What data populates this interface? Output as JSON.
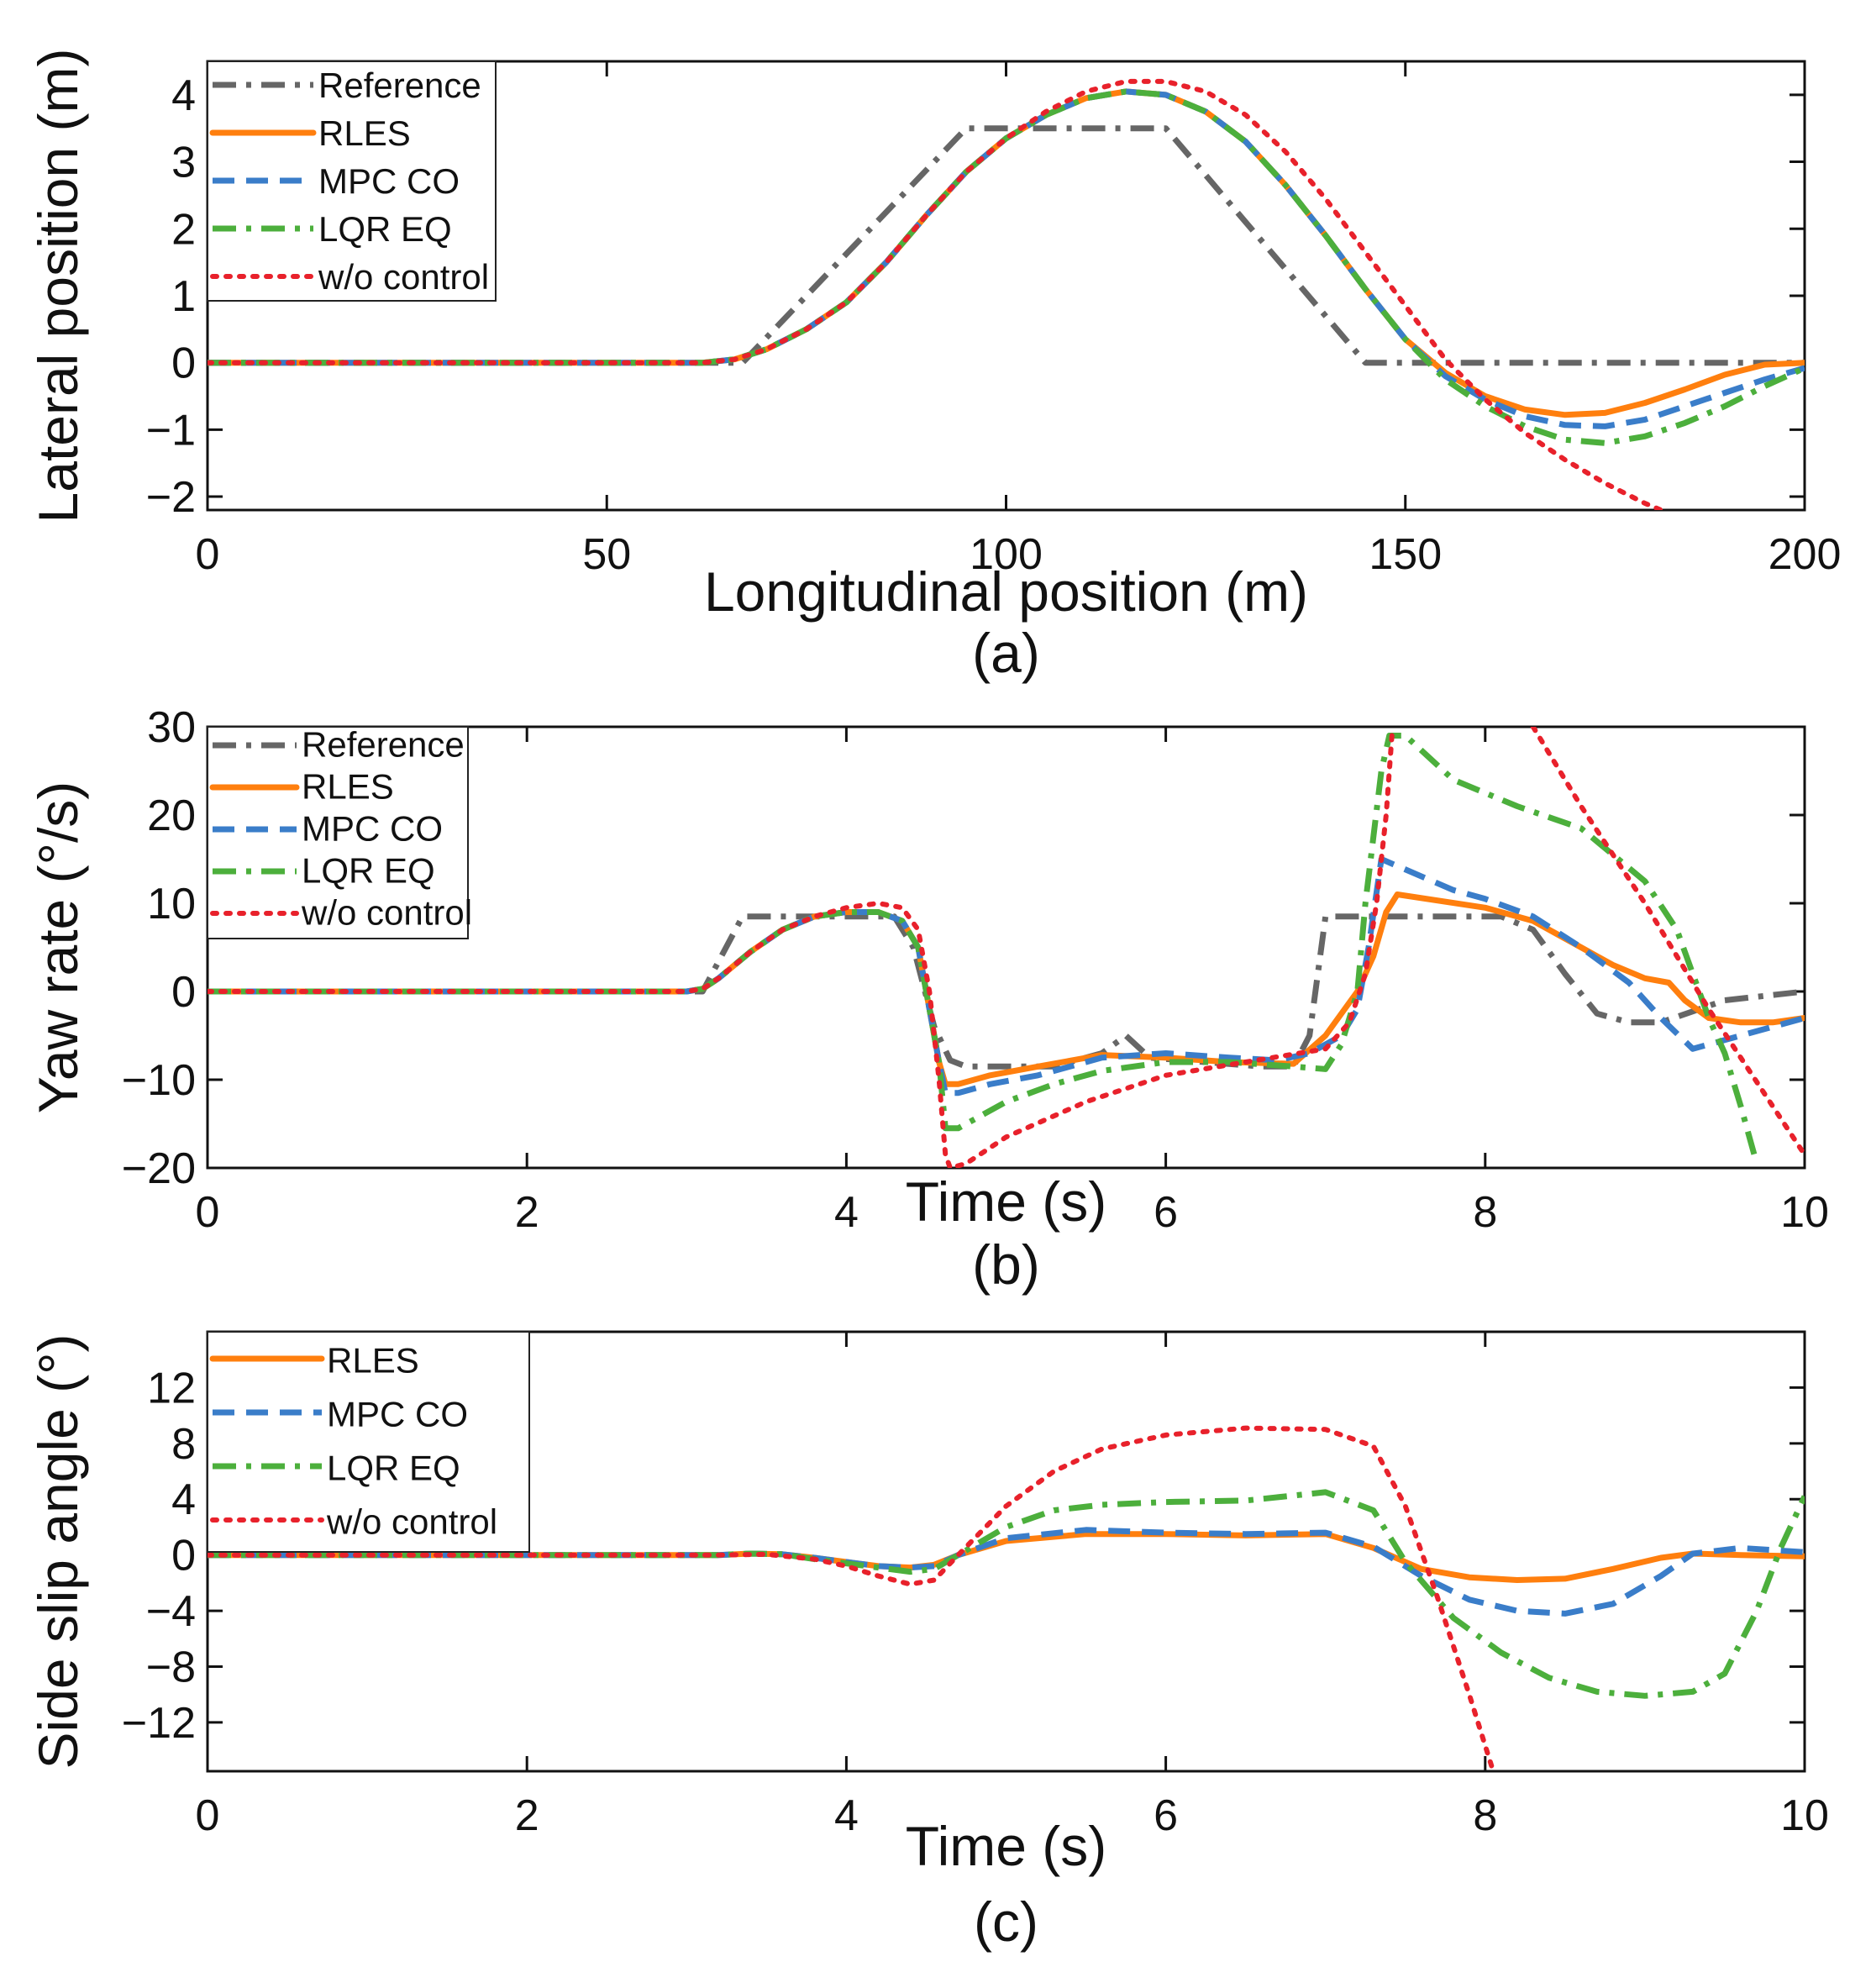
{
  "figure_title": "",
  "chart_data": [
    {
      "type": "line",
      "title": "",
      "caption": "(a)",
      "xlabel": "Longitudinal position (m)",
      "ylabel": "Lateral position (m)",
      "xlim": [
        0,
        200
      ],
      "ylim": [
        -2.2,
        4.5
      ],
      "xticks": [
        0,
        50,
        100,
        150,
        200
      ],
      "xtick_labels": [
        "0",
        "50",
        "100",
        "150",
        "200"
      ],
      "yticks": [
        -2,
        -1,
        0,
        1,
        2,
        3,
        4
      ],
      "ytick_labels": [
        "−2",
        "−1",
        "0",
        "1",
        "2",
        "3",
        "4"
      ],
      "grid": false,
      "legend_position": "top-left",
      "series": [
        {
          "name": "Reference",
          "color": "#666666",
          "style": "dashdot",
          "x": [
            0,
            67,
            95,
            120,
            145,
            200
          ],
          "y": [
            0,
            0,
            3.5,
            3.5,
            0,
            0
          ]
        },
        {
          "name": "RLES",
          "color": "#ff7f0e",
          "style": "solid",
          "x": [
            0,
            62,
            66,
            70,
            75,
            80,
            85,
            90,
            95,
            100,
            105,
            110,
            115,
            120,
            125,
            130,
            135,
            140,
            145,
            150,
            155,
            160,
            165,
            170,
            175,
            180,
            185,
            190,
            195,
            200
          ],
          "y": [
            0,
            0,
            0.05,
            0.2,
            0.5,
            0.9,
            1.5,
            2.2,
            2.85,
            3.35,
            3.7,
            3.95,
            4.05,
            4.0,
            3.75,
            3.3,
            2.65,
            1.9,
            1.1,
            0.35,
            -0.15,
            -0.5,
            -0.7,
            -0.78,
            -0.75,
            -0.6,
            -0.4,
            -0.18,
            -0.03,
            0
          ]
        },
        {
          "name": "MPC CO",
          "color": "#3a7dc9",
          "style": "dashed",
          "x": [
            0,
            62,
            66,
            70,
            75,
            80,
            85,
            90,
            95,
            100,
            105,
            110,
            115,
            120,
            125,
            130,
            135,
            140,
            145,
            150,
            155,
            160,
            165,
            170,
            175,
            180,
            185,
            190,
            195,
            200
          ],
          "y": [
            0,
            0,
            0.05,
            0.2,
            0.5,
            0.9,
            1.5,
            2.2,
            2.85,
            3.35,
            3.7,
            3.95,
            4.05,
            4.0,
            3.75,
            3.3,
            2.65,
            1.9,
            1.1,
            0.35,
            -0.2,
            -0.55,
            -0.8,
            -0.93,
            -0.95,
            -0.85,
            -0.65,
            -0.45,
            -0.25,
            -0.08
          ]
        },
        {
          "name": "LQR EQ",
          "color": "#4caf3c",
          "style": "dashdot",
          "x": [
            0,
            62,
            66,
            70,
            75,
            80,
            85,
            90,
            95,
            100,
            105,
            110,
            115,
            120,
            125,
            130,
            135,
            140,
            145,
            150,
            155,
            160,
            165,
            170,
            175,
            180,
            185,
            190,
            195,
            200
          ],
          "y": [
            0,
            0,
            0.05,
            0.2,
            0.5,
            0.9,
            1.5,
            2.2,
            2.85,
            3.35,
            3.7,
            3.95,
            4.05,
            4.0,
            3.75,
            3.3,
            2.65,
            1.9,
            1.1,
            0.35,
            -0.25,
            -0.65,
            -0.95,
            -1.15,
            -1.2,
            -1.1,
            -0.9,
            -0.65,
            -0.35,
            -0.08
          ]
        },
        {
          "name": "w/o control",
          "color": "#e8212b",
          "style": "dotted",
          "x": [
            0,
            62,
            66,
            70,
            75,
            80,
            85,
            90,
            95,
            100,
            105,
            110,
            115,
            120,
            125,
            130,
            135,
            140,
            145,
            150,
            155,
            160,
            165,
            170,
            175,
            180,
            182
          ],
          "y": [
            0,
            0,
            0.05,
            0.2,
            0.5,
            0.9,
            1.5,
            2.2,
            2.85,
            3.35,
            3.75,
            4.05,
            4.2,
            4.2,
            4.05,
            3.7,
            3.15,
            2.45,
            1.65,
            0.85,
            0.05,
            -0.55,
            -1.05,
            -1.45,
            -1.8,
            -2.1,
            -2.2
          ]
        }
      ]
    },
    {
      "type": "line",
      "title": "",
      "caption": "(b)",
      "xlabel": "Time (s)",
      "ylabel": "Yaw rate (°/s)",
      "xlim": [
        0,
        10
      ],
      "ylim": [
        -20,
        30
      ],
      "xticks": [
        0,
        2,
        4,
        6,
        8,
        10
      ],
      "xtick_labels": [
        "0",
        "2",
        "4",
        "6",
        "8",
        "10"
      ],
      "yticks": [
        -20,
        -10,
        0,
        10,
        20,
        30
      ],
      "ytick_labels": [
        "−20",
        "−10",
        "0",
        "10",
        "20",
        "30"
      ],
      "grid": false,
      "legend_position": "top-left",
      "series": [
        {
          "name": "Reference",
          "color": "#666666",
          "style": "dashdot",
          "x": [
            0,
            3.1,
            3.35,
            4.3,
            4.42,
            4.55,
            4.65,
            4.75,
            5.3,
            5.6,
            5.75,
            5.9,
            6.6,
            6.8,
            6.9,
            7.0,
            8.1,
            8.3,
            8.5,
            8.7,
            8.9,
            9.1,
            9.5,
            10
          ],
          "y": [
            0,
            0,
            8.5,
            8.5,
            5,
            -4,
            -7.8,
            -8.5,
            -8.5,
            -7,
            -5,
            -7.5,
            -8.5,
            -8.5,
            -5,
            8.5,
            8.5,
            7,
            2,
            -2.5,
            -3.5,
            -3.5,
            -1,
            0
          ]
        },
        {
          "name": "RLES",
          "color": "#ff7f0e",
          "style": "solid",
          "x": [
            0,
            3.0,
            3.1,
            3.2,
            3.4,
            3.6,
            3.8,
            4.0,
            4.2,
            4.35,
            4.45,
            4.52,
            4.58,
            4.62,
            4.7,
            4.9,
            5.2,
            5.6,
            6.0,
            6.4,
            6.8,
            7.0,
            7.2,
            7.3,
            7.38,
            7.45,
            8.0,
            8.3,
            8.6,
            8.8,
            9.0,
            9.15,
            9.25,
            9.4,
            9.6,
            9.8,
            10
          ],
          "y": [
            0,
            0,
            0.3,
            1.5,
            4.5,
            7,
            8.5,
            9,
            9,
            8,
            5,
            -2,
            -8,
            -10.5,
            -10.5,
            -9.5,
            -8.5,
            -7.2,
            -7.5,
            -8,
            -8.2,
            -5,
            0,
            4,
            9,
            11,
            9.5,
            8,
            5,
            3,
            1.5,
            1,
            -1,
            -3,
            -3.5,
            -3.5,
            -3
          ]
        },
        {
          "name": "MPC CO",
          "color": "#3a7dc9",
          "style": "dashed",
          "x": [
            0,
            3.0,
            3.1,
            3.2,
            3.4,
            3.6,
            3.8,
            4.0,
            4.2,
            4.35,
            4.45,
            4.52,
            4.58,
            4.62,
            4.7,
            4.9,
            5.2,
            5.6,
            6.0,
            6.4,
            6.7,
            6.9,
            7.1,
            7.2,
            7.27,
            7.35,
            7.8,
            8.0,
            8.3,
            8.6,
            8.9,
            9.1,
            9.3,
            9.5,
            9.8,
            10
          ],
          "y": [
            0,
            0,
            0.3,
            1.5,
            4.5,
            7,
            8.5,
            9,
            9,
            8,
            5,
            -2,
            -8,
            -11.5,
            -11.5,
            -10.5,
            -9.5,
            -7.5,
            -7,
            -7.5,
            -7.8,
            -7,
            -5,
            -2,
            5,
            15,
            11.5,
            10.5,
            8.5,
            5,
            1,
            -3,
            -6.5,
            -5.5,
            -4,
            -3
          ]
        },
        {
          "name": "LQR EQ",
          "color": "#4caf3c",
          "style": "dashdot",
          "x": [
            0,
            3.0,
            3.1,
            3.2,
            3.4,
            3.6,
            3.8,
            4.0,
            4.2,
            4.35,
            4.45,
            4.52,
            4.58,
            4.62,
            4.7,
            5.0,
            5.3,
            5.6,
            6.0,
            6.4,
            6.8,
            7.0,
            7.1,
            7.2,
            7.25,
            7.35,
            7.4,
            7.5,
            7.8,
            8.2,
            8.6,
            9.0,
            9.2,
            9.3,
            9.4,
            9.5,
            9.6,
            9.7
          ],
          "y": [
            0,
            0,
            0.3,
            1.5,
            4.5,
            7,
            8.5,
            9,
            9,
            8,
            5,
            -2,
            -8,
            -15.5,
            -15.5,
            -12.5,
            -10.5,
            -9,
            -8,
            -8,
            -8.5,
            -8.8,
            -6,
            0,
            10,
            25,
            29,
            29,
            24,
            21,
            18.5,
            12.5,
            7,
            2,
            -3,
            -7,
            -13,
            -19.5
          ]
        },
        {
          "name": "w/o control",
          "color": "#e8212b",
          "style": "dotted",
          "x": [
            0,
            3.0,
            3.1,
            3.2,
            3.4,
            3.6,
            3.8,
            4.0,
            4.2,
            4.35,
            4.45,
            4.52,
            4.58,
            4.62,
            4.65,
            4.75,
            5.0,
            5.5,
            6.0,
            6.5,
            7.0,
            7.15,
            7.25,
            7.32,
            7.38,
            7.42
          ],
          "y": [
            0,
            0,
            0.3,
            1.5,
            4.5,
            7,
            8.5,
            9.5,
            10,
            9.5,
            7,
            0,
            -10,
            -18.5,
            -20,
            -19.5,
            -16.5,
            -12.5,
            -9.5,
            -8,
            -6.5,
            -3.5,
            2,
            10,
            20,
            30
          ]
        },
        {
          "name": "w/o control",
          "color": "#e8212b",
          "style": "dotted",
          "x": [
            8.3,
            8.6,
            9.0,
            9.4,
            9.8,
            10
          ],
          "y": [
            30,
            21,
            10,
            -2,
            -13,
            -18.5
          ]
        }
      ]
    },
    {
      "type": "line",
      "title": "",
      "caption": "(c)",
      "xlabel": "Time (s)",
      "ylabel": "Side slip angle (°)",
      "xlim": [
        0,
        10
      ],
      "ylim": [
        -15.5,
        16
      ],
      "xticks": [
        0,
        2,
        4,
        6,
        8,
        10
      ],
      "xtick_labels": [
        "0",
        "2",
        "4",
        "6",
        "8",
        "10"
      ],
      "yticks": [
        -12,
        -8,
        -4,
        0,
        4,
        8,
        12
      ],
      "ytick_labels": [
        "−12",
        "−8",
        "−4",
        "0",
        "4",
        "8",
        "12"
      ],
      "grid": false,
      "legend_position": "top-left",
      "series": [
        {
          "name": "RLES",
          "color": "#ff7f0e",
          "style": "solid",
          "x": [
            0,
            3.2,
            3.4,
            3.6,
            3.8,
            4.0,
            4.2,
            4.4,
            4.55,
            4.7,
            5.0,
            5.5,
            6.0,
            6.5,
            7.0,
            7.3,
            7.6,
            7.9,
            8.2,
            8.5,
            8.8,
            9.1,
            9.3,
            9.6,
            10
          ],
          "y": [
            0,
            0,
            0.1,
            0.05,
            -0.2,
            -0.5,
            -0.8,
            -0.9,
            -0.7,
            0,
            1.0,
            1.5,
            1.5,
            1.4,
            1.5,
            0.5,
            -1.0,
            -1.6,
            -1.8,
            -1.7,
            -1.0,
            -0.2,
            0.1,
            0.0,
            -0.1
          ]
        },
        {
          "name": "MPC CO",
          "color": "#3a7dc9",
          "style": "dashed",
          "x": [
            0,
            3.2,
            3.4,
            3.6,
            3.8,
            4.0,
            4.2,
            4.4,
            4.55,
            4.7,
            5.0,
            5.5,
            6.0,
            6.5,
            7.0,
            7.3,
            7.6,
            7.9,
            8.2,
            8.5,
            8.8,
            9.1,
            9.3,
            9.6,
            10
          ],
          "y": [
            0,
            0,
            0.1,
            0.05,
            -0.2,
            -0.5,
            -0.8,
            -0.9,
            -0.8,
            0,
            1.2,
            1.8,
            1.6,
            1.5,
            1.6,
            0.6,
            -1.5,
            -3.2,
            -4.0,
            -4.2,
            -3.5,
            -1.5,
            0.1,
            0.5,
            0.2
          ]
        },
        {
          "name": "LQR EQ",
          "color": "#4caf3c",
          "style": "dashdot",
          "x": [
            0,
            3.2,
            3.4,
            3.6,
            3.8,
            4.0,
            4.2,
            4.4,
            4.55,
            4.7,
            5.0,
            5.3,
            5.6,
            6.0,
            6.5,
            7.0,
            7.3,
            7.5,
            7.8,
            8.1,
            8.4,
            8.7,
            9.0,
            9.3,
            9.5,
            9.7,
            9.85,
            10
          ],
          "y": [
            0,
            0,
            0.1,
            0.05,
            -0.3,
            -0.6,
            -0.9,
            -1.2,
            -1.0,
            0,
            2.0,
            3.2,
            3.6,
            3.8,
            3.9,
            4.5,
            3.2,
            -0.5,
            -4.5,
            -7.0,
            -8.8,
            -9.8,
            -10.1,
            -9.8,
            -8.5,
            -4.0,
            0.5,
            4.2
          ]
        },
        {
          "name": "w/o control",
          "color": "#e8212b",
          "style": "dotted",
          "x": [
            0,
            3.2,
            3.5,
            3.8,
            4.0,
            4.2,
            4.4,
            4.55,
            4.7,
            5.0,
            5.3,
            5.6,
            6.0,
            6.5,
            7.0,
            7.3,
            7.5,
            7.7,
            7.9,
            8.05
          ],
          "y": [
            0,
            0,
            0.05,
            -0.3,
            -0.8,
            -1.5,
            -2.1,
            -1.8,
            0,
            3.5,
            6.0,
            7.6,
            8.6,
            9.1,
            9.0,
            7.8,
            3.5,
            -3.0,
            -10.0,
            -15.5
          ]
        }
      ]
    }
  ]
}
